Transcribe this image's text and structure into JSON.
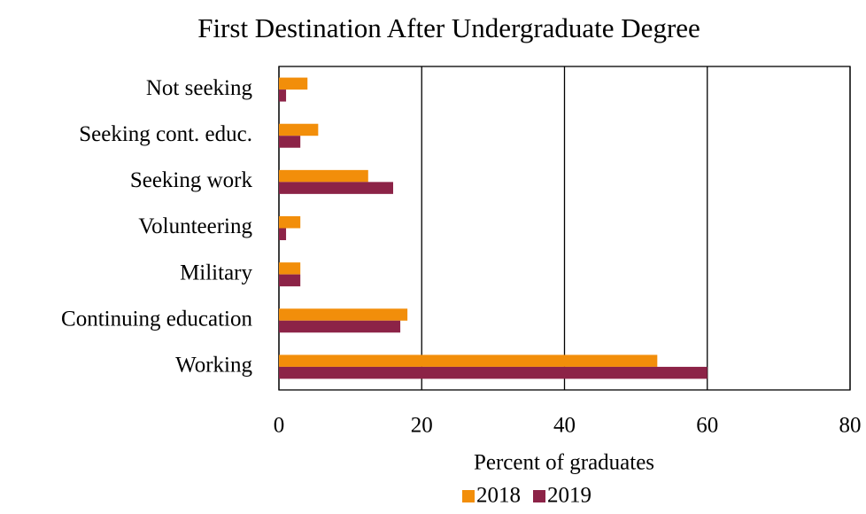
{
  "chart_data": {
    "type": "bar",
    "orientation": "horizontal",
    "title": "First Destination After Undergraduate Degree",
    "x_label": "Percent of graduates",
    "categories": [
      "Working",
      "Continuing education",
      "Military",
      "Volunteering",
      "Seeking work",
      "Seeking cont. educ.",
      "Not seeking"
    ],
    "series": [
      {
        "name": "2018",
        "color": "#f28e0a",
        "values": [
          53,
          18,
          3,
          3,
          12.5,
          5.5,
          4
        ]
      },
      {
        "name": "2019",
        "color": "#8c2347",
        "values": [
          60,
          17,
          3,
          1,
          16,
          3,
          1
        ]
      }
    ],
    "xlim": [
      0,
      80
    ],
    "xticks": [
      0,
      20,
      40,
      60,
      80
    ],
    "grid": true,
    "legend": "bottom"
  }
}
